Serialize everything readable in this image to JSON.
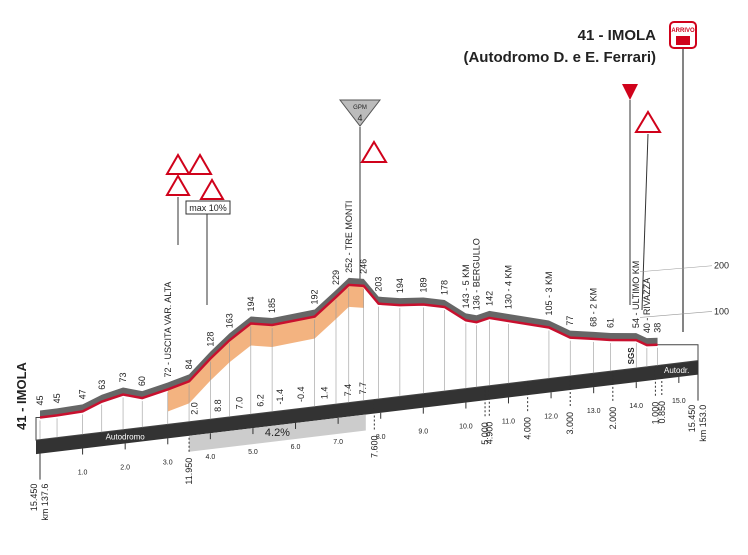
{
  "chart_data": {
    "type": "area",
    "title": "41 - IMOLA",
    "subtitle": "(Autodromo D. e E. Ferrari)",
    "start_label": "41 - IMOLA",
    "x": [
      0,
      0.4,
      1.0,
      1.45,
      1.95,
      2.4,
      3.0,
      3.5,
      4.0,
      4.45,
      4.95,
      5.45,
      6.45,
      6.95,
      7.25,
      7.6,
      7.95,
      8.45,
      9.0,
      9.5,
      10.0,
      10.25,
      10.55,
      11.0,
      11.95,
      12.45,
      13.0,
      13.4,
      14.0,
      14.25,
      14.5
    ],
    "values": [
      45,
      45,
      47,
      63,
      73,
      60,
      72,
      84,
      128,
      163,
      194,
      185,
      192,
      229,
      252,
      246,
      203,
      194,
      189,
      178,
      143,
      136,
      142,
      130,
      105,
      77,
      68,
      61,
      54,
      40,
      38
    ],
    "value_labels": [
      "45",
      "45",
      "47",
      "63",
      "73",
      "60",
      "72 - USCITA VAR. ALTA",
      "84",
      "128",
      "163",
      "194",
      "185",
      "192",
      "229",
      "252 - TRE MONTI",
      "246",
      "203",
      "194",
      "189",
      "178",
      "143 - 5 KM",
      "136 - BERGULLO",
      "142",
      "130 - 4 KM",
      "105 - 3 KM",
      "77",
      "68 - 2 KM",
      "61",
      "54 - ULTIMO KM",
      "40 - RIVAZZA",
      "38"
    ],
    "color": "#c8102e",
    "xlim": [
      0,
      15.45
    ],
    "xticks": [
      {
        "value": 1,
        "label": "1.0"
      },
      {
        "value": 2,
        "label": "2.0"
      },
      {
        "value": 3,
        "label": "3.0"
      },
      {
        "value": 4,
        "label": "4.0"
      },
      {
        "value": 5,
        "label": "5.0"
      },
      {
        "value": 6,
        "label": "6.0"
      },
      {
        "value": 7,
        "label": "7.0"
      },
      {
        "value": 8,
        "label": "8.0"
      },
      {
        "value": 9,
        "label": "9.0"
      },
      {
        "value": 10,
        "label": "10.0"
      },
      {
        "value": 11,
        "label": "11.0"
      },
      {
        "value": 12,
        "label": "12.0"
      },
      {
        "value": 13,
        "label": "13.0"
      },
      {
        "value": 14,
        "label": "14.0"
      },
      {
        "value": 15,
        "label": "15.0"
      }
    ],
    "yticks": [
      100,
      200
    ],
    "gradients": {
      "x": [
        3.7,
        4.25,
        4.75,
        5.25,
        5.7,
        6.2,
        6.75,
        7.3,
        7.65
      ],
      "labels": [
        "2.0",
        "8.8",
        "7.0",
        "6.2",
        "-1.4",
        "-0.4",
        "1.4",
        "7.4",
        "7.7"
      ]
    },
    "climb_gradient": "4.2%",
    "distance_marks": [
      {
        "value": 3.5,
        "label": "11.950"
      },
      {
        "value": 7.85,
        "label": "7.600"
      },
      {
        "value": 10.45,
        "label": "5.000"
      },
      {
        "value": 10.55,
        "label": "4.900"
      },
      {
        "value": 11.45,
        "label": "4.000"
      },
      {
        "value": 12.45,
        "label": "3.000"
      },
      {
        "value": 13.45,
        "label": "2.000"
      },
      {
        "value": 14.45,
        "label": "1.000"
      },
      {
        "value": 14.6,
        "label": "0.850"
      }
    ],
    "start_distance": "15.450",
    "start_km": "km 137.6",
    "end_distance": "15.450",
    "end_km": "km 153.0",
    "circuit_left": "Autodromo",
    "circuit_right": "Autodr.",
    "max_gradient": "max 10%",
    "sprint_label": "SGS",
    "kom_label": "GPM",
    "kom_category": "4",
    "finish_label": "ARRIVO"
  }
}
